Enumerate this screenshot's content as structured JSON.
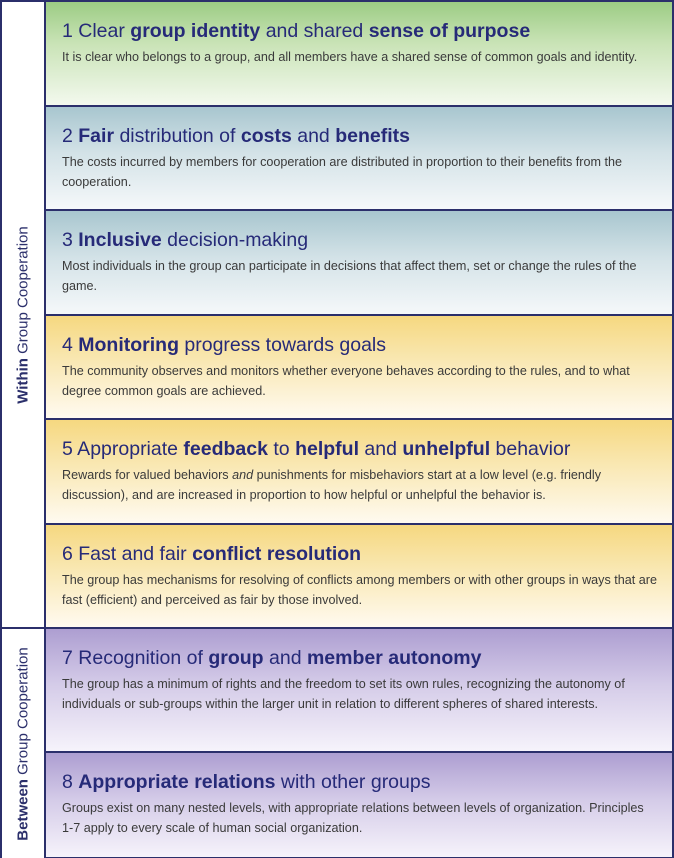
{
  "side_labels": {
    "within": {
      "bold": "Within",
      "rest": " Group Cooperation"
    },
    "between": {
      "bold": "Between",
      "rest": " Group Cooperation"
    }
  },
  "principles": [
    {
      "title_parts": [
        {
          "text": "1 Clear ",
          "bold": false
        },
        {
          "text": "group identity",
          "bold": true
        },
        {
          "text": " and shared ",
          "bold": false
        },
        {
          "text": "sense of purpose",
          "bold": true
        }
      ],
      "description_parts": [
        {
          "text": "It is clear who belongs to a group, and all members have a shared sense of common goals and identity.",
          "italic": false
        }
      ],
      "color": "#9ccc84"
    },
    {
      "title_parts": [
        {
          "text": "2 ",
          "bold": false
        },
        {
          "text": "Fair",
          "bold": true
        },
        {
          "text": " distribution of ",
          "bold": false
        },
        {
          "text": "costs",
          "bold": true
        },
        {
          "text": " and ",
          "bold": false
        },
        {
          "text": "benefits",
          "bold": true
        }
      ],
      "description_parts": [
        {
          "text": "The costs incurred by members for cooperation are distributed in proportion to their benefits from the cooperation.",
          "italic": false
        }
      ],
      "color": "#a8c6cf"
    },
    {
      "title_parts": [
        {
          "text": "3 ",
          "bold": false
        },
        {
          "text": "Inclusive",
          "bold": true
        },
        {
          "text": " decision-making",
          "bold": false
        }
      ],
      "description_parts": [
        {
          "text": "Most individuals in the group can participate in decisions that affect them, set or change the rules of the game.",
          "italic": false
        }
      ],
      "color": "#a8c6cf"
    },
    {
      "title_parts": [
        {
          "text": "4 ",
          "bold": false
        },
        {
          "text": "Monitoring",
          "bold": true
        },
        {
          "text": " progress towards goals",
          "bold": false
        }
      ],
      "description_parts": [
        {
          "text": "The community observes and monitors whether everyone behaves according to the rules, and to what degree common goals are achieved.",
          "italic": false
        }
      ],
      "color": "#f6d880"
    },
    {
      "title_parts": [
        {
          "text": "5 Appropriate ",
          "bold": false
        },
        {
          "text": "feedback",
          "bold": true
        },
        {
          "text": " to ",
          "bold": false
        },
        {
          "text": "helpful",
          "bold": true
        },
        {
          "text": " and ",
          "bold": false
        },
        {
          "text": "unhelpful",
          "bold": true
        },
        {
          "text": " behavior",
          "bold": false
        }
      ],
      "description_parts": [
        {
          "text": "Rewards for valued behaviors ",
          "italic": false
        },
        {
          "text": "and",
          "italic": true
        },
        {
          "text": " punishments for misbehaviors start at a low level (e.g. friendly discussion), and are increased in proportion to how helpful or unhelpful the behavior is.",
          "italic": false
        }
      ],
      "color": "#f6d880"
    },
    {
      "title_parts": [
        {
          "text": "6 Fast and fair ",
          "bold": false
        },
        {
          "text": "conflict resolution",
          "bold": true
        }
      ],
      "description_parts": [
        {
          "text": "The group has mechanisms for resolving of conflicts among members or with other groups in ways that are fast (efficient) and perceived as fair by those involved.",
          "italic": false
        }
      ],
      "color": "#f6d880"
    },
    {
      "title_parts": [
        {
          "text": "7 Recognition of ",
          "bold": false
        },
        {
          "text": "group",
          "bold": true
        },
        {
          "text": " and ",
          "bold": false
        },
        {
          "text": "member autonomy",
          "bold": true
        }
      ],
      "description_parts": [
        {
          "text": "The group has a minimum of rights and the freedom to set its own rules, recognizing the autonomy of individuals or sub-groups within the larger unit in relation to different spheres of shared interests.",
          "italic": false
        }
      ],
      "color": "#ad9ed1"
    },
    {
      "title_parts": [
        {
          "text": "8 ",
          "bold": false
        },
        {
          "text": "Appropriate relations",
          "bold": true
        },
        {
          "text": " with other groups",
          "bold": false
        }
      ],
      "description_parts": [
        {
          "text": "Groups exist on many nested levels, with appropriate relations between levels of organization. Principles 1-7 apply to every scale of human social organization.",
          "italic": false
        }
      ],
      "color": "#ad9ed1"
    }
  ]
}
